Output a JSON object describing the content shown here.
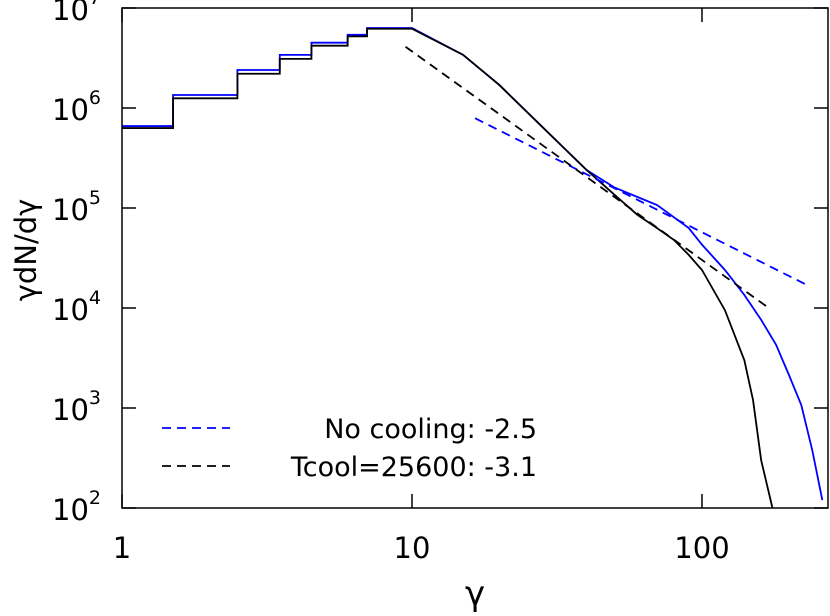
{
  "chart_data": {
    "type": "line",
    "x_label": "γ",
    "y_label": "γdN/dγ",
    "xscale": "log",
    "yscale": "log",
    "xlim": [
      1,
      272
    ],
    "ylim": [
      100,
      10000000
    ],
    "xticks": [
      1,
      10,
      100
    ],
    "yticks": [
      {
        "value": 100,
        "label": "10",
        "exponent": "2"
      },
      {
        "value": 1000,
        "label": "10",
        "exponent": "3"
      },
      {
        "value": 10000,
        "label": "10",
        "exponent": "4"
      },
      {
        "value": 100000,
        "label": "10",
        "exponent": "5"
      },
      {
        "value": 1000000,
        "label": "10",
        "exponent": "6"
      },
      {
        "value": 10000000,
        "label": "10",
        "exponent": "7"
      }
    ],
    "legend_position": "lower left",
    "series": [
      {
        "color": "#0000ff",
        "dash": false,
        "x": [
          1,
          1.5,
          1.5,
          2.5,
          2.5,
          3.5,
          3.5,
          4.5,
          4.5,
          6,
          6,
          7,
          7,
          10,
          15,
          20,
          30,
          40,
          50,
          70,
          90,
          100,
          120,
          140,
          160,
          180,
          200,
          220,
          240,
          260
        ],
        "values": [
          660000,
          660000,
          1350000,
          1350000,
          2400000,
          2400000,
          3400000,
          3400000,
          4500000,
          4500000,
          5400000,
          5400000,
          6300000,
          6300000,
          3400000,
          1700000,
          540000,
          240000,
          160000,
          107000,
          63000,
          43000,
          24000,
          13500,
          7600,
          4300,
          2100,
          1070,
          380,
          120
        ]
      },
      {
        "color": "#000000",
        "dash": false,
        "x": [
          1,
          1.5,
          1.5,
          2.5,
          2.5,
          3.5,
          3.5,
          4.5,
          4.5,
          6,
          6,
          7,
          7,
          10,
          15,
          20,
          30,
          40,
          50,
          60,
          70,
          80,
          90,
          100,
          120,
          140,
          150,
          160,
          175
        ],
        "values": [
          630000,
          630000,
          1250000,
          1250000,
          2200000,
          2200000,
          3100000,
          3100000,
          4200000,
          4200000,
          5200000,
          5200000,
          6200000,
          6200000,
          3400000,
          1700000,
          540000,
          240000,
          135000,
          85000,
          63000,
          48000,
          34000,
          24000,
          9500,
          3000,
          1200,
          300,
          100
        ]
      },
      {
        "name": "No cooling: -2.5",
        "color": "#0000ff",
        "dash": true,
        "x": [
          16.5,
          230
        ],
        "values": [
          790000,
          17000
        ]
      },
      {
        "name": "Tcool=25600: -3.1",
        "color": "#000000",
        "dash": true,
        "x": [
          9.5,
          170
        ],
        "values": [
          4100000,
          10000
        ]
      }
    ]
  }
}
